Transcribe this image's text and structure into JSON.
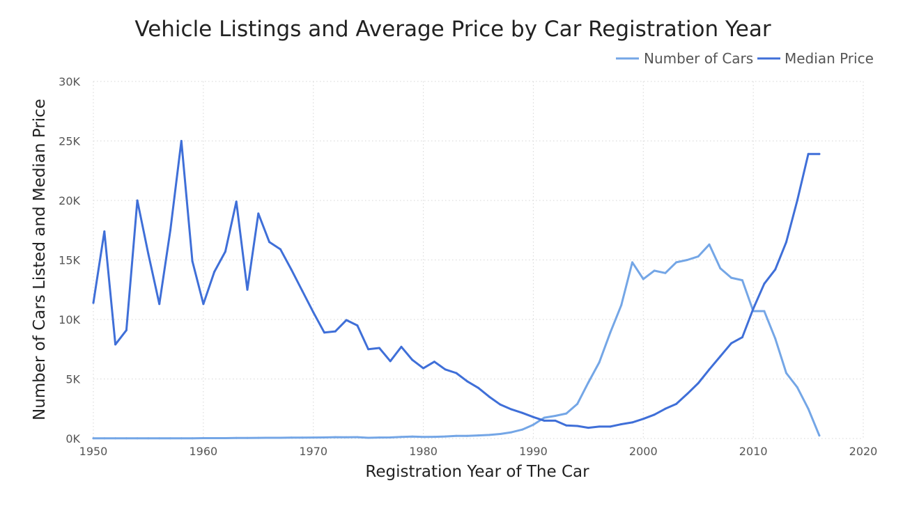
{
  "chart_data": {
    "type": "line",
    "title": "Vehicle Listings and Average Price by Car Registration Year",
    "xlabel": "Registration Year of The Car",
    "ylabel": "Number of Cars Listed and Median Price",
    "xlim": [
      1950,
      2020
    ],
    "ylim": [
      0,
      30000
    ],
    "x_ticks": [
      1950,
      1960,
      1970,
      1980,
      1990,
      2000,
      2010,
      2020
    ],
    "x_tick_labels": [
      "1950",
      "1960",
      "1970",
      "1980",
      "1990",
      "2000",
      "2010",
      "2020"
    ],
    "y_ticks": [
      0,
      5000,
      10000,
      15000,
      20000,
      25000,
      30000
    ],
    "y_tick_labels": [
      "0K",
      "5K",
      "10K",
      "15K",
      "20K",
      "25K",
      "30K"
    ],
    "grid": true,
    "legend_position": "top-right",
    "series": [
      {
        "name": "Number of Cars",
        "color": "#74a6e6",
        "points": [
          [
            1950,
            20
          ],
          [
            1951,
            20
          ],
          [
            1952,
            15
          ],
          [
            1953,
            20
          ],
          [
            1954,
            20
          ],
          [
            1955,
            15
          ],
          [
            1956,
            20
          ],
          [
            1957,
            20
          ],
          [
            1958,
            20
          ],
          [
            1959,
            20
          ],
          [
            1960,
            30
          ],
          [
            1961,
            30
          ],
          [
            1962,
            30
          ],
          [
            1963,
            40
          ],
          [
            1964,
            40
          ],
          [
            1965,
            50
          ],
          [
            1966,
            60
          ],
          [
            1967,
            60
          ],
          [
            1968,
            70
          ],
          [
            1969,
            70
          ],
          [
            1970,
            80
          ],
          [
            1971,
            90
          ],
          [
            1972,
            110
          ],
          [
            1973,
            100
          ],
          [
            1974,
            110
          ],
          [
            1975,
            60
          ],
          [
            1976,
            80
          ],
          [
            1977,
            90
          ],
          [
            1978,
            130
          ],
          [
            1979,
            160
          ],
          [
            1980,
            130
          ],
          [
            1981,
            140
          ],
          [
            1982,
            170
          ],
          [
            1983,
            220
          ],
          [
            1984,
            220
          ],
          [
            1985,
            260
          ],
          [
            1986,
            300
          ],
          [
            1987,
            380
          ],
          [
            1988,
            520
          ],
          [
            1989,
            750
          ],
          [
            1990,
            1150
          ],
          [
            1991,
            1750
          ],
          [
            1992,
            1900
          ],
          [
            1993,
            2100
          ],
          [
            1994,
            2900
          ],
          [
            1995,
            4700
          ],
          [
            1996,
            6400
          ],
          [
            1997,
            8900
          ],
          [
            1998,
            11200
          ],
          [
            1999,
            14800
          ],
          [
            2000,
            13400
          ],
          [
            2001,
            14100
          ],
          [
            2002,
            13900
          ],
          [
            2003,
            14800
          ],
          [
            2004,
            15000
          ],
          [
            2005,
            15300
          ],
          [
            2006,
            16300
          ],
          [
            2007,
            14300
          ],
          [
            2008,
            13500
          ],
          [
            2009,
            13300
          ],
          [
            2010,
            10700
          ],
          [
            2011,
            10700
          ],
          [
            2012,
            8400
          ],
          [
            2013,
            5500
          ],
          [
            2014,
            4300
          ],
          [
            2015,
            2500
          ],
          [
            2016,
            250
          ]
        ]
      },
      {
        "name": "Median Price",
        "color": "#3f6fd8",
        "points": [
          [
            1950,
            11400
          ],
          [
            1951,
            17400
          ],
          [
            1952,
            7900
          ],
          [
            1953,
            9100
          ],
          [
            1954,
            20000
          ],
          [
            1955,
            15500
          ],
          [
            1956,
            11300
          ],
          [
            1957,
            17500
          ],
          [
            1958,
            25000
          ],
          [
            1959,
            14900
          ],
          [
            1960,
            11300
          ],
          [
            1961,
            14000
          ],
          [
            1962,
            15700
          ],
          [
            1963,
            19900
          ],
          [
            1964,
            12500
          ],
          [
            1965,
            18900
          ],
          [
            1966,
            16500
          ],
          [
            1967,
            15900
          ],
          [
            1968,
            14200
          ],
          [
            1969,
            12400
          ],
          [
            1970,
            10600
          ],
          [
            1971,
            8900
          ],
          [
            1972,
            9000
          ],
          [
            1973,
            9950
          ],
          [
            1974,
            9500
          ],
          [
            1975,
            7500
          ],
          [
            1976,
            7600
          ],
          [
            1977,
            6500
          ],
          [
            1978,
            7700
          ],
          [
            1979,
            6600
          ],
          [
            1980,
            5900
          ],
          [
            1981,
            6450
          ],
          [
            1982,
            5800
          ],
          [
            1983,
            5500
          ],
          [
            1984,
            4800
          ],
          [
            1985,
            4250
          ],
          [
            1986,
            3500
          ],
          [
            1987,
            2850
          ],
          [
            1988,
            2450
          ],
          [
            1989,
            2150
          ],
          [
            1990,
            1800
          ],
          [
            1991,
            1500
          ],
          [
            1992,
            1500
          ],
          [
            1993,
            1100
          ],
          [
            1994,
            1050
          ],
          [
            1995,
            900
          ],
          [
            1996,
            1000
          ],
          [
            1997,
            1000
          ],
          [
            1998,
            1200
          ],
          [
            1999,
            1350
          ],
          [
            2000,
            1650
          ],
          [
            2001,
            2000
          ],
          [
            2002,
            2500
          ],
          [
            2003,
            2900
          ],
          [
            2004,
            3750
          ],
          [
            2005,
            4650
          ],
          [
            2006,
            5800
          ],
          [
            2007,
            6900
          ],
          [
            2008,
            8000
          ],
          [
            2009,
            8500
          ],
          [
            2010,
            10900
          ],
          [
            2011,
            13000
          ],
          [
            2012,
            14200
          ],
          [
            2013,
            16500
          ],
          [
            2014,
            20000
          ],
          [
            2015,
            23900
          ],
          [
            2016,
            23900
          ]
        ]
      }
    ]
  }
}
